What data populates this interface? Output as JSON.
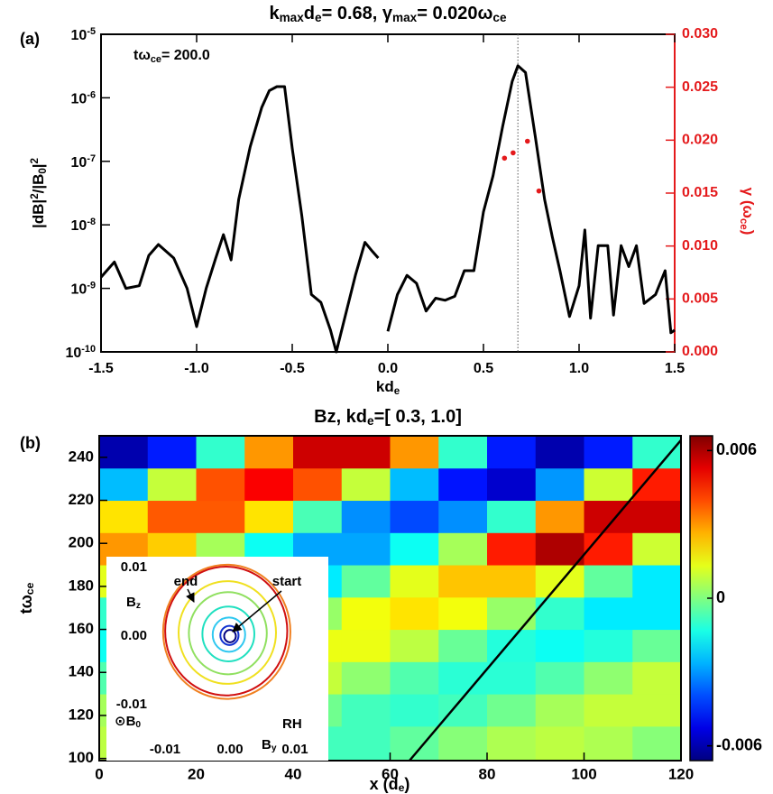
{
  "chart_data": [
    {
      "type": "line",
      "panel_label": "(a)",
      "title": [
        "k",
        {
          "sub": "max"
        },
        "d",
        {
          "sub": "e"
        },
        "=  0.68, ",
        "γ",
        {
          "sub": "max"
        },
        "= 0.020",
        "ω",
        {
          "sub": "ce"
        }
      ],
      "annotation": [
        "tω",
        {
          "sub": "ce"
        },
        "=  200.0"
      ],
      "xlabel": [
        "kd",
        {
          "sub": "e"
        }
      ],
      "ylabel": [
        "|dB|",
        {
          "sup": "2"
        },
        "/|B",
        {
          "sub": "0"
        },
        "|",
        {
          "sup": "2"
        }
      ],
      "y2label": [
        "γ (ω",
        {
          "sub": "ce"
        },
        ")"
      ],
      "y2_color": "#e41a1c",
      "log_y": true,
      "xlim": [
        -1.5,
        1.5
      ],
      "xticks": [
        -1.5,
        {
          "value": -1,
          "label": "-1.0"
        },
        -0.5,
        {
          "value": 0,
          "label": "0.0"
        },
        0.5,
        {
          "value": 1,
          "label": "1.0"
        },
        1.5
      ],
      "ylim": [
        1e-10,
        1e-05
      ],
      "yticks": [
        {
          "value": 1e-10,
          "label": [
            "10",
            {
              "sup": "-10"
            }
          ]
        },
        {
          "value": 1e-09,
          "label": [
            "10",
            {
              "sup": "-9"
            }
          ]
        },
        {
          "value": 1e-08,
          "label": [
            "10",
            {
              "sup": "-8"
            }
          ]
        },
        {
          "value": 1e-07,
          "label": [
            "10",
            {
              "sup": "-7"
            }
          ]
        },
        {
          "value": 1e-06,
          "label": [
            "10",
            {
              "sup": "-6"
            }
          ]
        },
        {
          "value": 1e-05,
          "label": [
            "10",
            {
              "sup": "-5"
            }
          ]
        }
      ],
      "y2lim": [
        0,
        0.03
      ],
      "y2ticks": [
        {
          "value": 0,
          "label": "0.000"
        },
        {
          "value": 0.005,
          "label": "0.005"
        },
        {
          "value": 0.01,
          "label": "0.010"
        },
        {
          "value": 0.015,
          "label": "0.015"
        },
        {
          "value": 0.02,
          "label": "0.020"
        },
        {
          "value": 0.025,
          "label": "0.025"
        },
        {
          "value": 0.03,
          "label": "0.030"
        }
      ],
      "vline": 0.68,
      "series": [
        {
          "color": "#000000",
          "x": [
            -1.5,
            -1.43,
            -1.37,
            -1.3,
            -1.25,
            -1.2,
            -1.12,
            -1.05,
            -1.0,
            -0.95,
            -0.9,
            -0.86,
            -0.82,
            -0.78,
            -0.72,
            -0.66,
            -0.62,
            -0.58,
            -0.54,
            -0.5,
            -0.45,
            -0.4,
            -0.35,
            -0.3,
            -0.27,
            -0.22,
            -0.17,
            -0.12,
            -0.08,
            -0.05,
            -0.02,
            0.0,
            0.05,
            0.1,
            0.15,
            0.2,
            0.25,
            0.3,
            0.35,
            0.4,
            0.45,
            0.5,
            0.55,
            0.6,
            0.65,
            0.68,
            0.72,
            0.77,
            0.82,
            0.86,
            0.9,
            0.95,
            1.0,
            1.03,
            1.06,
            1.1,
            1.15,
            1.18,
            1.22,
            1.26,
            1.3,
            1.34,
            1.4,
            1.45,
            1.48,
            1.5
          ],
          "values": [
            1.5e-09,
            2.6e-09,
            1e-09,
            1.1e-09,
            3.3e-09,
            4.9e-09,
            3e-09,
            1e-09,
            2.5e-10,
            1e-09,
            3e-09,
            7e-09,
            2.8e-09,
            2.5e-08,
            1.7e-07,
            7e-07,
            1.3e-06,
            1.5e-06,
            1.5e-06,
            1.6e-07,
            1.4e-08,
            8e-10,
            6e-10,
            2.2e-10,
            1e-10,
            4e-10,
            1.6e-09,
            5.3e-09,
            3.8e-09,
            3e-09,
            null,
            2.1e-10,
            8e-10,
            1.6e-09,
            1.2e-09,
            4.4e-10,
            7e-10,
            6.5e-10,
            7.5e-10,
            1.9e-09,
            1.9e-09,
            1.6e-08,
            5.9e-08,
            3.5e-07,
            1.8e-06,
            3.2e-06,
            2.5e-06,
            2.6e-07,
            2.5e-08,
            6.5e-09,
            1.9e-09,
            3.6e-10,
            1.1e-09,
            8.3e-09,
            3.4e-10,
            4.7e-09,
            4.7e-09,
            3.8e-10,
            4.7e-09,
            2.2e-09,
            4.7e-09,
            5.8e-10,
            8e-10,
            1.9e-09,
            2e-10,
            2.2e-10
          ]
        },
        {
          "color": "#e41a1c",
          "axis": "y2",
          "x": [
            0.61,
            0.655,
            0.73,
            0.79
          ],
          "values": [
            0.0183,
            0.0188,
            0.0199,
            0.0152
          ]
        }
      ]
    },
    {
      "type": "heatmap",
      "panel_label": "(b)",
      "title": [
        "Bz, kd",
        {
          "sub": "e"
        },
        "=[  0.3,  1.0]"
      ],
      "xlabel": [
        "x (d",
        {
          "sub": "e"
        },
        ")"
      ],
      "ylabel": [
        "tω",
        {
          "sub": "ce"
        }
      ],
      "xlim": [
        0,
        120
      ],
      "xticks": [
        0,
        20,
        40,
        60,
        80,
        100,
        120
      ],
      "ylim": [
        99,
        250
      ],
      "yticks": [
        100,
        120,
        140,
        160,
        180,
        200,
        220,
        240
      ],
      "x_edges": [
        0,
        10,
        20,
        30,
        40,
        50,
        60,
        70,
        80,
        90,
        100,
        110,
        120
      ],
      "y_edges": [
        99,
        115,
        130,
        145,
        160,
        175,
        190,
        205,
        220,
        235,
        250
      ],
      "z": [
        [
          0.0008,
          0.0006,
          0.0001,
          -0.0004,
          -0.0008,
          -0.0008,
          -0.0004,
          0.0001,
          0.0006,
          0.0008,
          0.0006,
          0.0001
        ],
        [
          0.0005,
          0.0009,
          0.0009,
          0.0005,
          -0.0002,
          -0.0008,
          -0.001,
          -0.0008,
          -0.0002,
          0.0005,
          0.0009,
          0.0009
        ],
        [
          -0.0006,
          0.0002,
          0.0009,
          0.0012,
          0.0009,
          0.0002,
          -0.0006,
          -0.0011,
          -0.0011,
          -0.0006,
          0.0002,
          0.0009
        ],
        [
          -0.0015,
          -0.0012,
          -0.0003,
          0.0008,
          0.0014,
          0.0014,
          0.0008,
          -0.0003,
          -0.0012,
          -0.0015,
          -0.0012,
          -0.0003
        ],
        [
          -0.001,
          -0.0019,
          -0.0019,
          -0.001,
          0.0003,
          0.0015,
          0.002,
          0.0015,
          0.0003,
          -0.001,
          -0.0019,
          -0.0019
        ],
        [
          0.0013,
          -0.0004,
          -0.0019,
          -0.0025,
          -0.0019,
          -0.0004,
          0.0013,
          0.0024,
          0.0024,
          0.0013,
          -0.0004,
          -0.0019
        ],
        [
          0.003,
          0.0023,
          0.0005,
          -0.0015,
          -0.0028,
          -0.0028,
          -0.0015,
          0.0005,
          0.0046,
          0.006,
          0.0046,
          0.001
        ],
        [
          0.002,
          0.0038,
          0.0038,
          0.002,
          -0.0007,
          -0.0031,
          -0.004,
          -0.0031,
          -0.001,
          0.003,
          0.0056,
          0.0056
        ],
        [
          -0.0025,
          0.0009,
          0.0039,
          0.005,
          0.0039,
          0.0009,
          -0.0025,
          -0.0047,
          -0.0056,
          -0.003,
          0.001,
          0.0046
        ],
        [
          -0.006,
          -0.0046,
          -0.001,
          0.003,
          0.0056,
          0.0056,
          0.003,
          -0.001,
          -0.0046,
          -0.006,
          -0.0046,
          -0.001
        ]
      ],
      "clim": [
        -0.0066,
        0.0066
      ],
      "cticks": [
        -0.006,
        0,
        0.006
      ],
      "trace": {
        "color": "#000000",
        "x": [
          64,
          120
        ],
        "y": [
          99,
          248
        ]
      },
      "inset": {
        "xlabel": [
          "B",
          {
            "sub": "y"
          }
        ],
        "ylabel": [
          "B",
          {
            "sub": "z"
          }
        ],
        "xlim": [
          -0.0125,
          0.0125
        ],
        "ylim": [
          -0.0112,
          0.0112
        ],
        "xticks": [
          -0.01,
          {
            "value": 0,
            "label": "0.00"
          },
          0.01
        ],
        "yticks": [
          -0.01,
          {
            "value": 0,
            "label": "0.00"
          },
          0.01
        ],
        "colors": [
          "#00007f",
          "#1030d0",
          "#30c8f0",
          "#20e0c0",
          "#90e060",
          "#f0e020",
          "#f08020",
          "#d01010"
        ],
        "radii": [
          0.0009,
          0.0014,
          0.0025,
          0.004,
          0.006,
          0.0075,
          0.0098,
          0.0094
        ],
        "start": "start",
        "end": "end",
        "rh": "RH",
        "b0": [
          "⊙B",
          {
            "sub": "0"
          }
        ]
      }
    }
  ]
}
